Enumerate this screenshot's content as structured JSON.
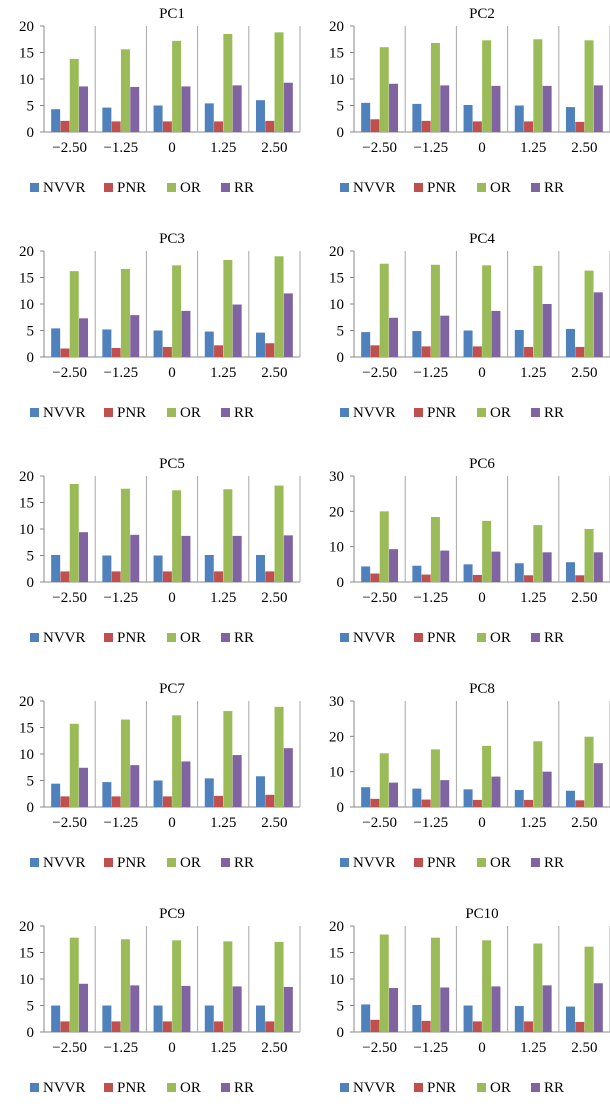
{
  "series_colors": {
    "NVVR": "#4F81BD",
    "PNR": "#C0504D",
    "OR": "#9BBB59",
    "RR": "#8064A2"
  },
  "chart_data": [
    {
      "type": "bar",
      "title": "PC1",
      "categories": [
        "−2.50",
        "−1.25",
        "0",
        "1.25",
        "2.50"
      ],
      "ylim": [
        0,
        20
      ],
      "yticks": [
        "0",
        "5",
        "10",
        "15",
        "20"
      ],
      "legend": "bottom",
      "series": [
        {
          "name": "NVVR",
          "values": [
            4.3,
            4.6,
            5.0,
            5.4,
            6.0
          ]
        },
        {
          "name": "PNR",
          "values": [
            2.1,
            2.0,
            2.0,
            2.0,
            2.1
          ]
        },
        {
          "name": "OR",
          "values": [
            13.8,
            15.6,
            17.2,
            18.5,
            18.8
          ]
        },
        {
          "name": "RR",
          "values": [
            8.6,
            8.5,
            8.6,
            8.8,
            9.3
          ]
        }
      ]
    },
    {
      "type": "bar",
      "title": "PC2",
      "categories": [
        "−2.50",
        "−1.25",
        "0",
        "1.25",
        "2.50"
      ],
      "ylim": [
        0,
        20
      ],
      "yticks": [
        "0",
        "5",
        "10",
        "15",
        "20"
      ],
      "legend": "bottom",
      "series": [
        {
          "name": "NVVR",
          "values": [
            5.5,
            5.3,
            5.1,
            5.0,
            4.7
          ]
        },
        {
          "name": "PNR",
          "values": [
            2.4,
            2.1,
            2.0,
            2.0,
            1.9
          ]
        },
        {
          "name": "OR",
          "values": [
            16.0,
            16.8,
            17.3,
            17.5,
            17.3
          ]
        },
        {
          "name": "RR",
          "values": [
            9.1,
            8.8,
            8.7,
            8.7,
            8.8
          ]
        }
      ]
    },
    {
      "type": "bar",
      "title": "PC3",
      "categories": [
        "−2.50",
        "−1.25",
        "0",
        "1.25",
        "2.50"
      ],
      "ylim": [
        0,
        20
      ],
      "yticks": [
        "0",
        "5",
        "10",
        "15",
        "20"
      ],
      "legend": "bottom",
      "series": [
        {
          "name": "NVVR",
          "values": [
            5.4,
            5.2,
            5.0,
            4.8,
            4.6
          ]
        },
        {
          "name": "PNR",
          "values": [
            1.6,
            1.7,
            1.9,
            2.2,
            2.6
          ]
        },
        {
          "name": "OR",
          "values": [
            16.2,
            16.6,
            17.3,
            18.3,
            19.0
          ]
        },
        {
          "name": "RR",
          "values": [
            7.3,
            7.9,
            8.7,
            9.9,
            12.0
          ]
        }
      ]
    },
    {
      "type": "bar",
      "title": "PC4",
      "categories": [
        "−2.50",
        "−1.25",
        "0",
        "1.25",
        "2.50"
      ],
      "ylim": [
        0,
        20
      ],
      "yticks": [
        "0",
        "5",
        "10",
        "15",
        "20"
      ],
      "legend": "bottom",
      "series": [
        {
          "name": "NVVR",
          "values": [
            4.7,
            4.9,
            5.0,
            5.1,
            5.3
          ]
        },
        {
          "name": "PNR",
          "values": [
            2.2,
            2.0,
            2.0,
            1.9,
            1.9
          ]
        },
        {
          "name": "OR",
          "values": [
            17.6,
            17.4,
            17.3,
            17.2,
            16.3
          ]
        },
        {
          "name": "RR",
          "values": [
            7.4,
            7.8,
            8.7,
            10.0,
            12.2
          ]
        }
      ]
    },
    {
      "type": "bar",
      "title": "PC5",
      "categories": [
        "−2.50",
        "−1.25",
        "0",
        "1.25",
        "2.50"
      ],
      "ylim": [
        0,
        20
      ],
      "yticks": [
        "0",
        "5",
        "10",
        "15",
        "20"
      ],
      "legend": "bottom",
      "series": [
        {
          "name": "NVVR",
          "values": [
            5.1,
            5.0,
            5.0,
            5.1,
            5.1
          ]
        },
        {
          "name": "PNR",
          "values": [
            2.0,
            2.0,
            2.0,
            2.0,
            2.0
          ]
        },
        {
          "name": "OR",
          "values": [
            18.5,
            17.6,
            17.3,
            17.5,
            18.2
          ]
        },
        {
          "name": "RR",
          "values": [
            9.4,
            8.9,
            8.7,
            8.7,
            8.8
          ]
        }
      ]
    },
    {
      "type": "bar",
      "title": "PC6",
      "categories": [
        "−2.50",
        "−1.25",
        "0",
        "1.25",
        "2.50"
      ],
      "ylim": [
        0,
        30
      ],
      "yticks": [
        "0",
        "10",
        "20",
        "30"
      ],
      "legend": "bottom",
      "series": [
        {
          "name": "NVVR",
          "values": [
            4.4,
            4.6,
            5.0,
            5.3,
            5.6
          ]
        },
        {
          "name": "PNR",
          "values": [
            2.4,
            2.1,
            2.0,
            1.9,
            1.9
          ]
        },
        {
          "name": "OR",
          "values": [
            20.0,
            18.4,
            17.3,
            16.1,
            15.0
          ]
        },
        {
          "name": "RR",
          "values": [
            9.3,
            8.9,
            8.6,
            8.4,
            8.4
          ]
        }
      ]
    },
    {
      "type": "bar",
      "title": "PC7",
      "categories": [
        "−2.50",
        "−1.25",
        "0",
        "1.25",
        "2.50"
      ],
      "ylim": [
        0,
        20
      ],
      "yticks": [
        "0",
        "5",
        "10",
        "15",
        "20"
      ],
      "legend": "bottom",
      "series": [
        {
          "name": "NVVR",
          "values": [
            4.4,
            4.7,
            5.0,
            5.4,
            5.8
          ]
        },
        {
          "name": "PNR",
          "values": [
            2.0,
            2.0,
            2.0,
            2.1,
            2.3
          ]
        },
        {
          "name": "OR",
          "values": [
            15.7,
            16.5,
            17.3,
            18.1,
            18.9
          ]
        },
        {
          "name": "RR",
          "values": [
            7.4,
            7.9,
            8.6,
            9.8,
            11.1
          ]
        }
      ]
    },
    {
      "type": "bar",
      "title": "PC8",
      "categories": [
        "−2.50",
        "−1.25",
        "0",
        "1.25",
        "2.50"
      ],
      "ylim": [
        0,
        30
      ],
      "yticks": [
        "0",
        "10",
        "20",
        "30"
      ],
      "legend": "bottom",
      "series": [
        {
          "name": "NVVR",
          "values": [
            5.6,
            5.2,
            5.0,
            4.8,
            4.6
          ]
        },
        {
          "name": "PNR",
          "values": [
            2.3,
            2.1,
            2.0,
            2.0,
            1.9
          ]
        },
        {
          "name": "OR",
          "values": [
            15.2,
            16.3,
            17.3,
            18.6,
            19.9
          ]
        },
        {
          "name": "RR",
          "values": [
            6.9,
            7.6,
            8.6,
            10.0,
            12.4
          ]
        }
      ]
    },
    {
      "type": "bar",
      "title": "PC9",
      "categories": [
        "−2.50",
        "−1.25",
        "0",
        "1.25",
        "2.50"
      ],
      "ylim": [
        0,
        20
      ],
      "yticks": [
        "0",
        "5",
        "10",
        "15",
        "20"
      ],
      "legend": "bottom",
      "series": [
        {
          "name": "NVVR",
          "values": [
            5.0,
            5.0,
            5.0,
            5.0,
            5.0
          ]
        },
        {
          "name": "PNR",
          "values": [
            2.0,
            2.0,
            2.0,
            2.0,
            2.0
          ]
        },
        {
          "name": "OR",
          "values": [
            17.8,
            17.5,
            17.3,
            17.1,
            17.0
          ]
        },
        {
          "name": "RR",
          "values": [
            9.1,
            8.8,
            8.7,
            8.6,
            8.5
          ]
        }
      ]
    },
    {
      "type": "bar",
      "title": "PC10",
      "categories": [
        "−2.50",
        "−1.25",
        "0",
        "1.25",
        "2.50"
      ],
      "ylim": [
        0,
        20
      ],
      "yticks": [
        "0",
        "5",
        "10",
        "15",
        "20"
      ],
      "legend": "bottom",
      "series": [
        {
          "name": "NVVR",
          "values": [
            5.2,
            5.1,
            5.0,
            4.9,
            4.8
          ]
        },
        {
          "name": "PNR",
          "values": [
            2.3,
            2.1,
            2.0,
            2.0,
            1.9
          ]
        },
        {
          "name": "OR",
          "values": [
            18.4,
            17.8,
            17.3,
            16.7,
            16.1
          ]
        },
        {
          "name": "RR",
          "values": [
            8.3,
            8.4,
            8.6,
            8.8,
            9.2
          ]
        }
      ]
    }
  ]
}
